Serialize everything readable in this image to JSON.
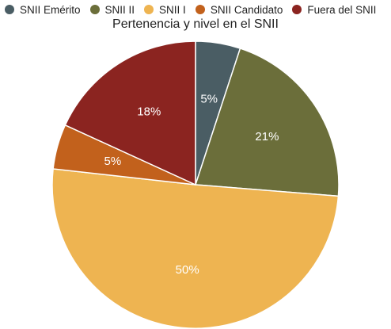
{
  "chart_data": {
    "type": "pie",
    "title": "Pertenencia y nivel en el SNII",
    "legend_position": "top",
    "slices": [
      {
        "label": "SNII Emérito",
        "value": 5,
        "display": "5%",
        "color": "#4a5d64"
      },
      {
        "label": "SNII II",
        "value": 21,
        "display": "21%",
        "color": "#6b6e3a"
      },
      {
        "label": "SNII I",
        "value": 50,
        "display": "50%",
        "color": "#eeb451"
      },
      {
        "label": "SNII Candidato",
        "value": 5,
        "display": "5%",
        "color": "#c2611c"
      },
      {
        "label": "Fuera del SNII",
        "value": 18,
        "display": "18%",
        "color": "#8b2420"
      }
    ]
  }
}
